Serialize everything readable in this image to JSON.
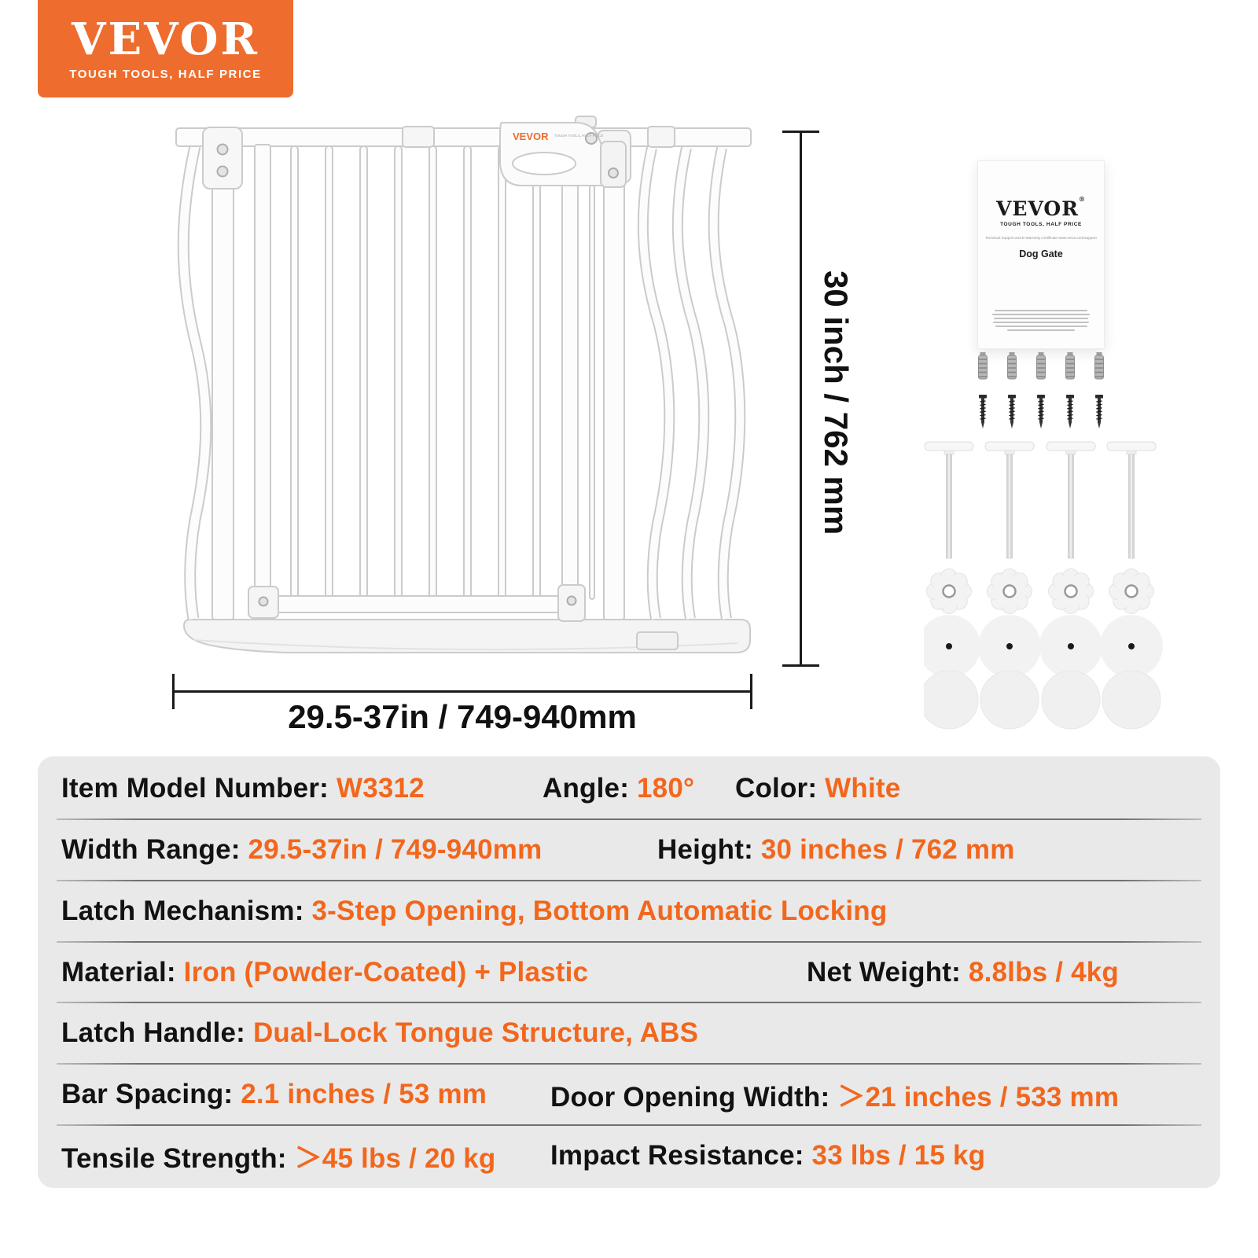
{
  "logo": {
    "brand": "VEVOR",
    "tagline": "TOUGH TOOLS, HALF PRICE"
  },
  "diagram": {
    "height_label": "30 inch / 762 mm",
    "width_label": "29.5-37in / 749-940mm",
    "gate_handle_brand": "VEVOR",
    "gate_handle_tagline": "TOUGH TOOLS, HALF PRICE"
  },
  "manual": {
    "brand": "VEVOR",
    "registered_mark": "®",
    "tagline": "TOUGH TOOLS, HALF PRICE",
    "support_line": "Technical Support and E-Warranty Certificate www.vevor.com/support",
    "title": "Dog Gate"
  },
  "hardware": {
    "wall_anchors": 5,
    "screws": 5,
    "threaded_rods": 4,
    "locking_knobs": 4,
    "wall_cups_dotted": 4,
    "wall_cups_plain": 4
  },
  "spec_table": {
    "rows": [
      {
        "cells": [
          {
            "label": "Item Model Number:",
            "value": "W3312"
          },
          {
            "label": "Angle:",
            "value": "180°"
          },
          {
            "label": "Color:",
            "value": "White"
          }
        ]
      },
      {
        "cells": [
          {
            "label": "Width Range:",
            "value": "29.5-37in / 749-940mm"
          },
          {
            "label": "Height:",
            "value": "30 inches / 762 mm"
          }
        ]
      },
      {
        "cells": [
          {
            "label": "Latch Mechanism:",
            "value": "3-Step Opening, Bottom Automatic Locking"
          }
        ]
      },
      {
        "cells": [
          {
            "label": "Material:",
            "value": "Iron (Powder-Coated) + Plastic"
          },
          {
            "label": "Net Weight:",
            "value": "8.8lbs / 4kg"
          }
        ]
      },
      {
        "cells": [
          {
            "label": "Latch Handle:",
            "value": "Dual-Lock Tongue Structure, ABS"
          }
        ]
      },
      {
        "cells": [
          {
            "label": "Bar Spacing:",
            "value": "2.1 inches / 53 mm"
          },
          {
            "label": "Door Opening Width:",
            "value": "＞21 inches / 533 mm"
          }
        ]
      },
      {
        "cells": [
          {
            "label": "Tensile Strength:",
            "value": "＞45 lbs / 20 kg"
          },
          {
            "label": "Impact Resistance:",
            "value": "33 lbs / 15 kg"
          }
        ]
      }
    ]
  },
  "colors": {
    "brand_orange": "#EE6C2D",
    "value_orange": "#F2671D",
    "table_background": "#E9E9E9",
    "divider": "#707070",
    "text": "#121212",
    "gate_outline": "#CBCBCB",
    "gate_fill": "#FCFCFC"
  }
}
